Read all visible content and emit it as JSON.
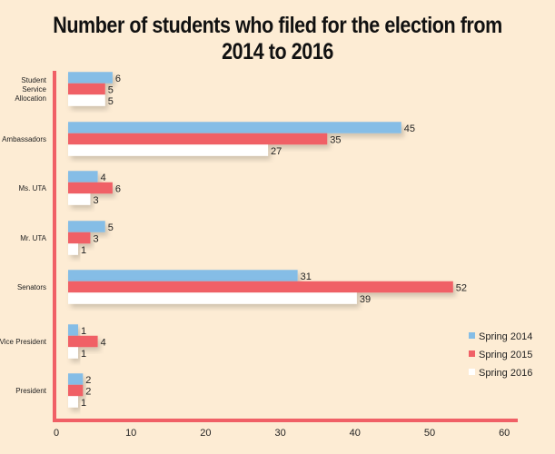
{
  "chart_data": {
    "type": "bar",
    "orientation": "horizontal",
    "title": "Number of students who filed for the election from 2014 to 2016",
    "categories": [
      "Student Service Allocation",
      "Ambassadors",
      "Ms. UTA",
      "Mr. UTA",
      "Senators",
      "Vice President",
      "President"
    ],
    "series": [
      {
        "name": "Spring 2014",
        "color": "#85bde6",
        "values": [
          6,
          45,
          4,
          5,
          31,
          1,
          2
        ]
      },
      {
        "name": "Spring 2015",
        "color": "#f06066",
        "values": [
          5,
          35,
          6,
          3,
          52,
          4,
          2
        ]
      },
      {
        "name": "Spring 2016",
        "color": "#ffffff",
        "values": [
          5,
          27,
          3,
          1,
          39,
          1,
          1
        ]
      }
    ],
    "xlim": [
      0,
      60
    ],
    "xticks": [
      0,
      10,
      20,
      30,
      40,
      50,
      60
    ],
    "legend": "right",
    "grid": false,
    "axis_color": "#f06066",
    "background": "#fdecd4"
  }
}
